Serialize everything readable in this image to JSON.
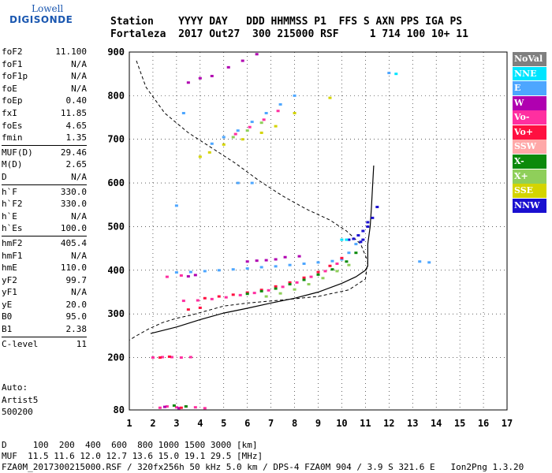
{
  "logo": {
    "brand_top": "Lowell",
    "brand_bottom": "DIGISONDE"
  },
  "header": {
    "line1": "Station    YYYY DAY   DDD HHMMSS P1  FFS S AXN PPS IGA PS",
    "line2": "Fortaleza  2017 Out27  300 215000 RSF     1 714 100 10+ 11"
  },
  "params_group1": [
    {
      "label": "foF2",
      "value": "11.100"
    },
    {
      "label": "foF1",
      "value": "N/A"
    },
    {
      "label": "foF1p",
      "value": "N/A"
    },
    {
      "label": "foE",
      "value": "N/A"
    },
    {
      "label": "foEp",
      "value": "0.40"
    },
    {
      "label": "fxI",
      "value": "11.85"
    },
    {
      "label": "foEs",
      "value": "4.65"
    },
    {
      "label": "fmin",
      "value": "1.35"
    }
  ],
  "params_group2": [
    {
      "label": "MUF(D)",
      "value": "29.46"
    },
    {
      "label": "M(D)",
      "value": "2.65"
    },
    {
      "label": "D",
      "value": "N/A"
    }
  ],
  "params_group3": [
    {
      "label": "h`F",
      "value": "330.0"
    },
    {
      "label": "h`F2",
      "value": "330.0"
    },
    {
      "label": "h`E",
      "value": "N/A"
    },
    {
      "label": "h`Es",
      "value": "100.0"
    }
  ],
  "params_group4": [
    {
      "label": "hmF2",
      "value": "405.4"
    },
    {
      "label": "hmF1",
      "value": "N/A"
    },
    {
      "label": "hmE",
      "value": "110.0"
    },
    {
      "label": "yF2",
      "value": "99.7"
    },
    {
      "label": "yF1",
      "value": "N/A"
    },
    {
      "label": "yE",
      "value": "20.0"
    },
    {
      "label": "B0",
      "value": "95.0"
    },
    {
      "label": "B1",
      "value": "2.38"
    }
  ],
  "params_group5": [
    {
      "label": "C-level",
      "value": "11"
    }
  ],
  "extra": {
    "auto": "Auto:",
    "artist": "Artist5",
    "version": "500200"
  },
  "legend": [
    {
      "label": "NoVal",
      "color": "#7f7f7f"
    },
    {
      "label": "NNE",
      "color": "#00e5ff"
    },
    {
      "label": "E",
      "color": "#4da6ff"
    },
    {
      "label": "W",
      "color": "#b000b0"
    },
    {
      "label": "Vo-",
      "color": "#ff2fa0"
    },
    {
      "label": "Vo+",
      "color": "#ff1040"
    },
    {
      "label": "SSW",
      "color": "#ffa8a8"
    },
    {
      "label": "X-",
      "color": "#0b8a0b"
    },
    {
      "label": "X+",
      "color": "#8fcf5a"
    },
    {
      "label": "SSE",
      "color": "#d4d400"
    },
    {
      "label": "NNW",
      "color": "#1a10d0"
    }
  ],
  "chart_data": {
    "type": "scatter",
    "xlim": [
      1,
      17
    ],
    "ylim": [
      80,
      900
    ],
    "x_ticks": [
      1,
      2,
      3,
      4,
      5,
      6,
      7,
      8,
      9,
      10,
      11,
      12,
      13,
      14,
      15,
      16,
      17
    ],
    "y_ticks": [
      80,
      200,
      300,
      400,
      500,
      600,
      700,
      800,
      900
    ],
    "grid": true,
    "legend_position": "right",
    "series": [
      {
        "name": "E",
        "color": "#4da6ff",
        "points": [
          [
            3.0,
            395
          ],
          [
            3.6,
            396
          ],
          [
            4.2,
            398
          ],
          [
            4.8,
            400
          ],
          [
            5.4,
            402
          ],
          [
            6.0,
            404
          ],
          [
            6.6,
            407
          ],
          [
            7.2,
            409
          ],
          [
            7.8,
            412
          ],
          [
            8.4,
            415
          ],
          [
            9.0,
            418
          ],
          [
            9.6,
            421
          ],
          [
            10.0,
            425
          ],
          [
            10.3,
            440
          ],
          [
            10.6,
            460
          ],
          [
            4.5,
            690
          ],
          [
            5.0,
            705
          ],
          [
            5.6,
            720
          ],
          [
            6.2,
            740
          ],
          [
            6.8,
            760
          ],
          [
            7.4,
            780
          ],
          [
            8.0,
            800
          ],
          [
            3.0,
            548
          ],
          [
            13.3,
            420
          ],
          [
            13.7,
            418
          ],
          [
            12.0,
            852
          ],
          [
            3.3,
            760
          ],
          [
            5.6,
            600
          ],
          [
            6.2,
            600
          ]
        ]
      },
      {
        "name": "Vo-",
        "color": "#ff2fa0",
        "points": [
          [
            2.3,
            85
          ],
          [
            2.6,
            88
          ],
          [
            3.0,
            86
          ],
          [
            3.4,
            88
          ],
          [
            3.8,
            86
          ],
          [
            4.2,
            84
          ],
          [
            2.0,
            200
          ],
          [
            2.4,
            201
          ],
          [
            2.8,
            201
          ],
          [
            3.2,
            200
          ],
          [
            3.6,
            201
          ],
          [
            3.3,
            330
          ],
          [
            3.9,
            331
          ],
          [
            4.5,
            334
          ],
          [
            5.1,
            338
          ],
          [
            5.7,
            343
          ],
          [
            6.3,
            348
          ],
          [
            6.9,
            354
          ],
          [
            7.5,
            362
          ],
          [
            8.1,
            372
          ],
          [
            8.7,
            385
          ],
          [
            9.3,
            398
          ],
          [
            9.8,
            415
          ],
          [
            2.6,
            385
          ],
          [
            3.2,
            388
          ],
          [
            5.5,
            712
          ],
          [
            6.1,
            728
          ],
          [
            6.7,
            745
          ],
          [
            7.3,
            765
          ]
        ]
      },
      {
        "name": "W",
        "color": "#b000b0",
        "points": [
          [
            2.5,
            87
          ],
          [
            3.1,
            84
          ],
          [
            3.5,
            386
          ],
          [
            3.8,
            389
          ],
          [
            6.0,
            420
          ],
          [
            6.4,
            422
          ],
          [
            6.8,
            423
          ],
          [
            7.2,
            425
          ],
          [
            7.6,
            430
          ],
          [
            8.2,
            432
          ],
          [
            5.2,
            865
          ],
          [
            5.8,
            880
          ],
          [
            6.4,
            895
          ],
          [
            3.5,
            830
          ],
          [
            4.0,
            840
          ],
          [
            4.5,
            845
          ]
        ]
      },
      {
        "name": "Vo+",
        "color": "#ff1040",
        "points": [
          [
            4.2,
            336
          ],
          [
            4.8,
            340
          ],
          [
            5.4,
            344
          ],
          [
            6.0,
            349
          ],
          [
            6.6,
            355
          ],
          [
            7.2,
            363
          ],
          [
            7.8,
            372
          ],
          [
            8.4,
            383
          ],
          [
            9.0,
            396
          ],
          [
            9.5,
            410
          ],
          [
            10.0,
            428
          ],
          [
            3.5,
            310
          ],
          [
            4.0,
            314
          ],
          [
            2.3,
            200
          ],
          [
            2.7,
            202
          ],
          [
            3.2,
            85
          ]
        ]
      },
      {
        "name": "X-",
        "color": "#0b8a0b",
        "points": [
          [
            6.0,
            346
          ],
          [
            6.6,
            352
          ],
          [
            7.2,
            358
          ],
          [
            7.8,
            368
          ],
          [
            8.4,
            378
          ],
          [
            9.0,
            390
          ],
          [
            9.6,
            402
          ],
          [
            10.2,
            420
          ],
          [
            10.6,
            440
          ],
          [
            3.4,
            88
          ],
          [
            2.9,
            90
          ]
        ]
      },
      {
        "name": "X+",
        "color": "#8fcf5a",
        "points": [
          [
            6.8,
            340
          ],
          [
            7.4,
            347
          ],
          [
            8.0,
            356
          ],
          [
            8.6,
            368
          ],
          [
            9.2,
            382
          ],
          [
            9.8,
            398
          ],
          [
            10.3,
            412
          ],
          [
            5.4,
            705
          ],
          [
            6.0,
            720
          ],
          [
            6.6,
            738
          ]
        ]
      },
      {
        "name": "SSE",
        "color": "#d4d400",
        "points": [
          [
            4.0,
            660
          ],
          [
            4.4,
            670
          ],
          [
            5.0,
            688
          ],
          [
            5.8,
            700
          ],
          [
            6.6,
            715
          ],
          [
            7.2,
            730
          ],
          [
            8.0,
            760
          ],
          [
            9.5,
            795
          ]
        ]
      },
      {
        "name": "NNW",
        "color": "#1a10d0",
        "points": [
          [
            10.3,
            470
          ],
          [
            10.5,
            472
          ],
          [
            10.7,
            480
          ],
          [
            10.9,
            490
          ],
          [
            11.1,
            500
          ],
          [
            11.3,
            520
          ],
          [
            11.5,
            545
          ],
          [
            11.1,
            510
          ],
          [
            10.8,
            465
          ],
          [
            10.9,
            470
          ]
        ]
      },
      {
        "name": "NNE",
        "color": "#00e5ff",
        "points": [
          [
            10.0,
            470
          ],
          [
            10.2,
            470
          ],
          [
            12.3,
            850
          ]
        ]
      }
    ],
    "profile_solid": [
      [
        1.9,
        255
      ],
      [
        3.0,
        270
      ],
      [
        4.0,
        287
      ],
      [
        5.0,
        302
      ],
      [
        6.0,
        313
      ],
      [
        7.0,
        325
      ],
      [
        8.0,
        336
      ],
      [
        9.0,
        350
      ],
      [
        10.0,
        370
      ],
      [
        10.6,
        385
      ],
      [
        11.0,
        400
      ],
      [
        11.1,
        410
      ],
      [
        11.1,
        430
      ],
      [
        11.1,
        460
      ],
      [
        11.2,
        500
      ],
      [
        11.25,
        540
      ],
      [
        11.3,
        590
      ],
      [
        11.35,
        640
      ]
    ],
    "profile_dashed": [
      [
        1.3,
        880
      ],
      [
        1.7,
        820
      ],
      [
        2.5,
        760
      ],
      [
        3.5,
        715
      ],
      [
        4.5,
        680
      ],
      [
        5.5,
        645
      ],
      [
        6.5,
        605
      ],
      [
        7.5,
        570
      ],
      [
        8.5,
        540
      ],
      [
        9.5,
        515
      ],
      [
        10.2,
        490
      ],
      [
        10.8,
        460
      ],
      [
        11.1,
        420
      ],
      [
        11.0,
        380
      ],
      [
        10.3,
        355
      ],
      [
        9.0,
        340
      ],
      [
        7.5,
        332
      ],
      [
        6.0,
        325
      ],
      [
        5.0,
        318
      ],
      [
        4.2,
        306
      ],
      [
        3.6,
        297
      ],
      [
        3.0,
        290
      ],
      [
        2.4,
        280
      ],
      [
        1.8,
        265
      ],
      [
        1.3,
        250
      ],
      [
        1.0,
        240
      ]
    ]
  },
  "footer": {
    "line1": "D     100  200  400  600  800 1000 1500 3000 [km]",
    "line2": "MUF  11.5 11.6 12.0 12.7 13.6 15.0 19.1 29.5 [MHz]",
    "line3": "FZA0M_2017300215000.RSF / 320fx256h 50 kHz 5.0 km / DPS-4 FZA0M 904 / 3.9 S 321.6 E   Ion2Png 1.3.20"
  }
}
